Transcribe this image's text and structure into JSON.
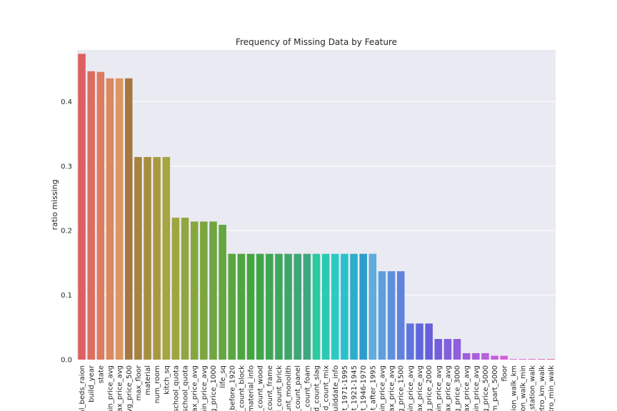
{
  "chart_data": {
    "type": "bar",
    "title": "Frequency of Missing Data by Feature",
    "xlabel": "",
    "ylabel": "ratio missing",
    "ylim": [
      0,
      0.48
    ],
    "yticks": [
      0.0,
      0.1,
      0.2,
      0.3,
      0.4
    ],
    "grid": true,
    "categories": [
      "al_beds_raion",
      "build_year",
      "state",
      "min_price_avg",
      "max_price_avg",
      "avg_price_500",
      "max_floor",
      "material",
      "num_room",
      "kitch_sq",
      "eschool_quota",
      "school_quota",
      "max_price_avg",
      "min_price_avg",
      "avg_price_1000",
      "life_sq",
      "l_before_1920",
      "d_count_block",
      "l_material_info",
      "d_count_wood",
      "l_count_frame",
      "d_count_brick",
      "count_monolith",
      "d_count_panel",
      "d_count_foam",
      "d_count_slag",
      "ild_count_mix",
      "builddate_info",
      "unt_1971-1995",
      "unt_1921-1945",
      "unt_1946-1970",
      "unt_after_1995",
      "min_price_avg",
      "max_price_avg",
      "avg_price_1500",
      "min_price_avg",
      "max_price_avg",
      "avg_price_2000",
      "min_price_avg",
      "max_price_avg",
      "avg_price_3000",
      "max_price_avg",
      "min_price_avg",
      "avg_price_5000",
      "om_part_5000",
      "floor",
      "tation_walk_km",
      "ation_walk_min",
      "_station_walk",
      "etro_km_walk",
      "etro_min_walk"
    ],
    "values": [
      0.474,
      0.447,
      0.446,
      0.436,
      0.436,
      0.436,
      0.314,
      0.314,
      0.314,
      0.314,
      0.22,
      0.22,
      0.214,
      0.214,
      0.214,
      0.209,
      0.164,
      0.164,
      0.164,
      0.164,
      0.164,
      0.164,
      0.164,
      0.164,
      0.164,
      0.164,
      0.164,
      0.164,
      0.164,
      0.164,
      0.164,
      0.164,
      0.137,
      0.137,
      0.137,
      0.056,
      0.056,
      0.056,
      0.032,
      0.032,
      0.032,
      0.01,
      0.01,
      0.01,
      0.006,
      0.006,
      0.001,
      0.001,
      0.001,
      0.001,
      0.001
    ]
  }
}
